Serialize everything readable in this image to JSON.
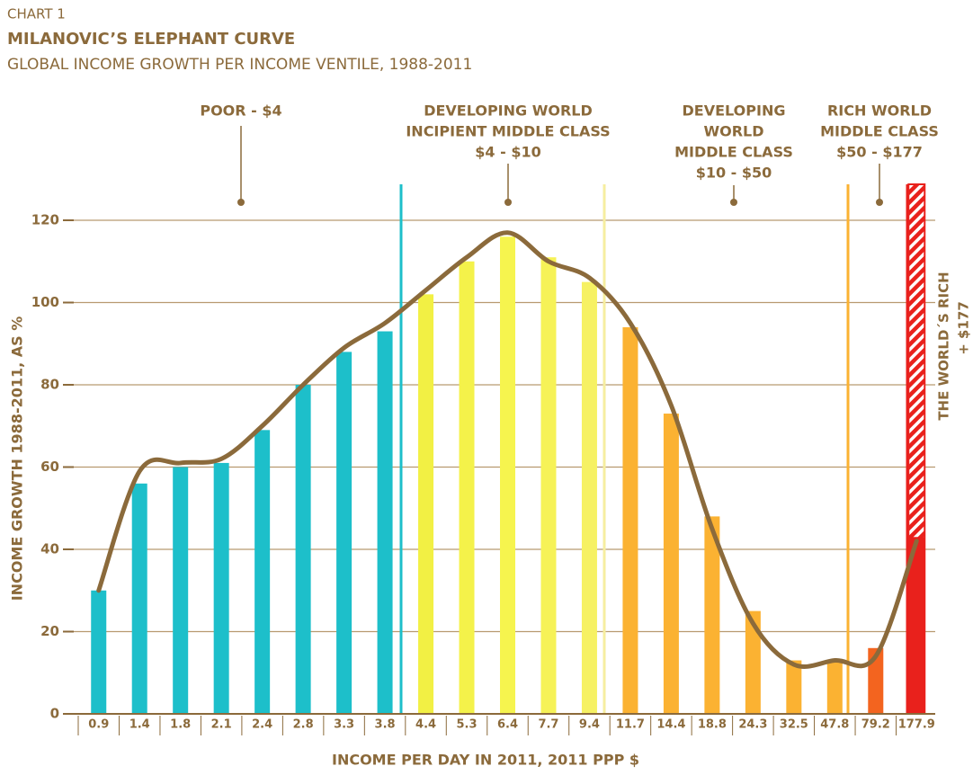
{
  "chart_data": {
    "type": "bar",
    "label": "CHART 1",
    "title": "MILANOVIC’S ELEPHANT CURVE",
    "subtitle": "GLOBAL INCOME GROWTH PER INCOME VENTILE, 1988-2011",
    "xlabel": "INCOME PER DAY IN 2011, 2011 PPP $",
    "ylabel": "INCOME GROWTH 1988-2011, AS %",
    "categories": [
      "0.9",
      "1.4",
      "1.8",
      "2.1",
      "2.4",
      "2.8",
      "3.3",
      "3.8",
      "4.4",
      "5.3",
      "6.4",
      "7.7",
      "9.4",
      "11.7",
      "14.4",
      "18.8",
      "24.3",
      "32.5",
      "47.8",
      "79.2",
      "177.9"
    ],
    "values": [
      30,
      56,
      60,
      61,
      69,
      80,
      88,
      93,
      102,
      110,
      116,
      111,
      105,
      94,
      73,
      48,
      25,
      13,
      13,
      16,
      43
    ],
    "colors": [
      "#1dbfca",
      "#1dbfca",
      "#1dbfca",
      "#1dbfca",
      "#1dbfca",
      "#1dbfca",
      "#1dbfca",
      "#1dbfca",
      "#f2f044",
      "#f4f24a",
      "#f6f44e",
      "#f6f257",
      "#f6f163",
      "#fbb232",
      "#fbb232",
      "#fbb232",
      "#fbb232",
      "#fbb232",
      "#fbb232",
      "#f3641f",
      "#e9211c"
    ],
    "line": {
      "color": "#8b6a3b",
      "values": [
        30,
        59,
        61,
        62,
        70,
        80,
        89,
        95,
        103,
        111,
        117,
        110,
        106,
        95,
        75,
        45,
        22,
        12,
        13,
        14,
        42
      ]
    },
    "ylim": [
      0,
      120
    ],
    "yticks": [
      0,
      20,
      40,
      60,
      80,
      100,
      120
    ],
    "grid": true,
    "annotations": [
      {
        "lines": [
          "POOR - $4"
        ]
      },
      {
        "lines": [
          "DEVELOPING WORLD",
          "INCIPIENT MIDDLE CLASS",
          "$4 - $10"
        ]
      },
      {
        "lines": [
          "DEVELOPING",
          "WORLD",
          "MIDDLE CLASS",
          "$10 - $50"
        ]
      },
      {
        "lines": [
          "RICH WORLD",
          "MIDDLE CLASS",
          "$50 - $177"
        ]
      }
    ],
    "rich_label": [
      "THE WORLD´S RICH",
      "+ $177"
    ]
  }
}
